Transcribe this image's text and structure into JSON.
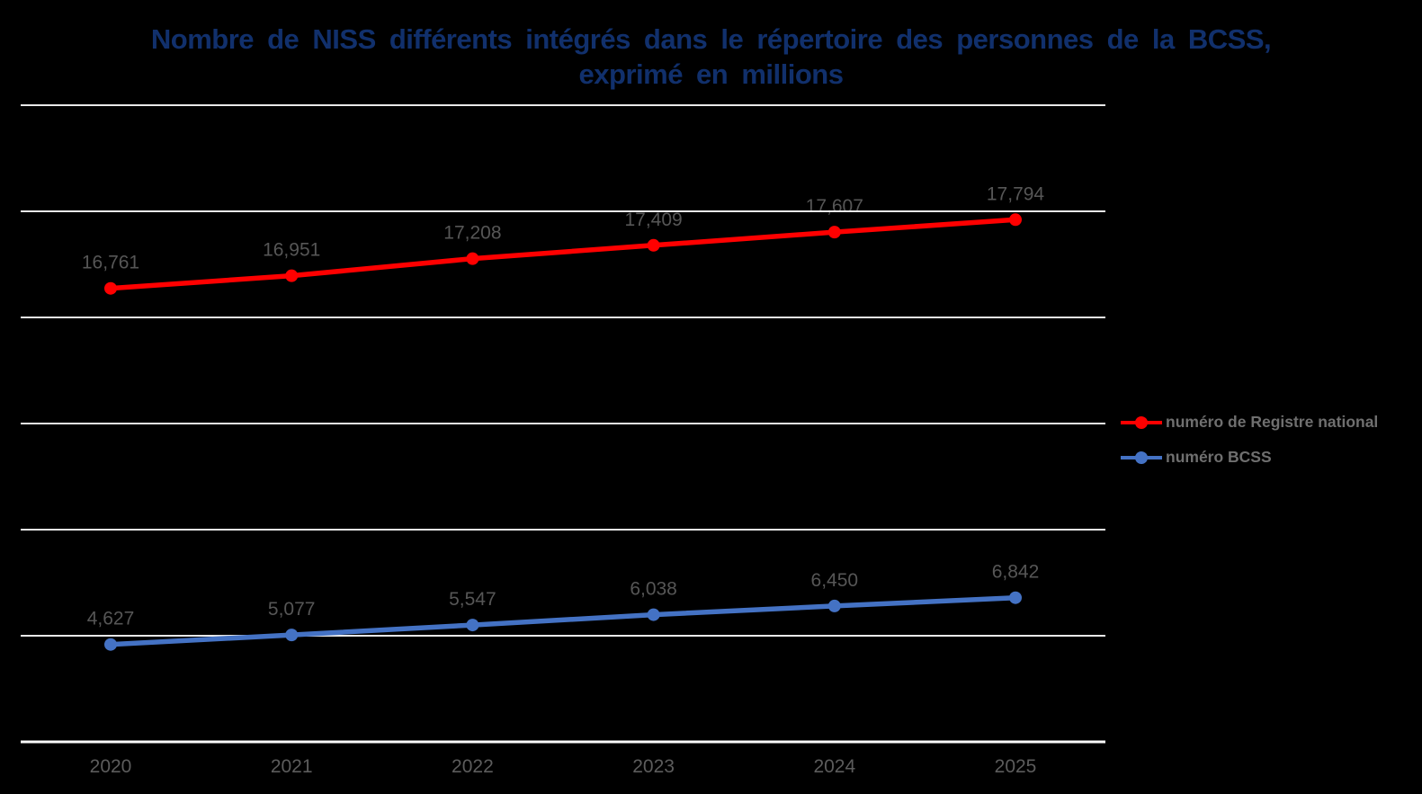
{
  "title": {
    "line1": "Nombre de NISS différents intégrés dans le répertoire des personnes de la BCSS,",
    "line2": "exprimé en millions"
  },
  "chart_data": {
    "type": "line",
    "title": "Nombre de NISS différents intégrés dans le répertoire des personnes de la BCSS, exprimé en millions",
    "categories": [
      "2020",
      "2021",
      "2022",
      "2023",
      "2024",
      "2025"
    ],
    "series": [
      {
        "name": "numéro de Registre national",
        "color": "#FF0000",
        "values": [
          16761,
          16951,
          17208,
          17409,
          17607,
          17794
        ],
        "labels": [
          "16,761",
          "16,951",
          "17,208",
          "17,409",
          "17,607",
          "17,794"
        ]
      },
      {
        "name": "numéro BCSS",
        "color": "#4472C4",
        "values": [
          4627,
          5077,
          5547,
          6038,
          6450,
          6842
        ],
        "labels": [
          "4,627",
          "5,077",
          "5,547",
          "6,038",
          "6,450",
          "6,842"
        ]
      }
    ],
    "legend_position": "right",
    "grid": true,
    "y_axis_labels_visible": false,
    "data_labels_position": "above"
  },
  "colors": {
    "background": "#000000",
    "title_text": "#11306c",
    "data_label": "#565656",
    "axis_label": "#5c5c5c",
    "legend_text": "#6f6f6f",
    "gridline": "#e9e9e9",
    "axis_line": "#fafafa"
  }
}
